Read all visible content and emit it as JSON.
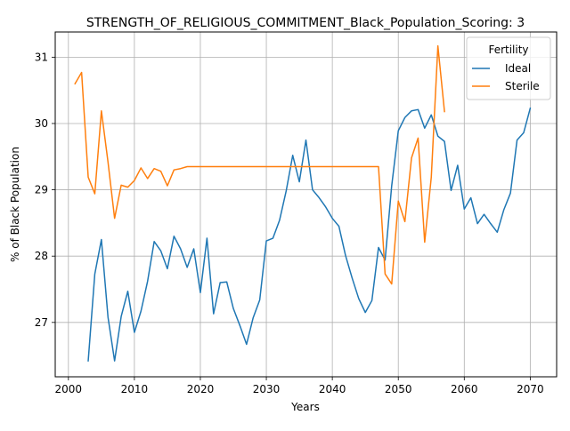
{
  "chart_data": {
    "type": "line",
    "title": "STRENGTH_OF_RELIGIOUS_COMMITMENT_Black_Population_Scoring: 3",
    "xlabel": "Years",
    "ylabel": "% of Black Population",
    "xlim": [
      1998,
      2074
    ],
    "ylim": [
      26.18,
      31.38
    ],
    "xticks": [
      2000,
      2010,
      2020,
      2030,
      2040,
      2050,
      2060,
      2070
    ],
    "yticks": [
      27,
      28,
      29,
      30,
      31
    ],
    "grid": true,
    "legend": {
      "title": "Fertility",
      "placement": "top-right"
    },
    "series": [
      {
        "name": "Ideal",
        "color": "#1f77b4",
        "x": [
          2003,
          2004,
          2005,
          2006,
          2007,
          2008,
          2009,
          2010,
          2011,
          2012,
          2013,
          2014,
          2015,
          2016,
          2017,
          2018,
          2019,
          2020,
          2021,
          2022,
          2023,
          2024,
          2025,
          2026,
          2027,
          2028,
          2029,
          2030,
          2031,
          2032,
          2033,
          2034,
          2035,
          2036,
          2037,
          2038,
          2039,
          2040,
          2041,
          2042,
          2043,
          2044,
          2045,
          2046,
          2047,
          2048,
          2049,
          2050,
          2051,
          2052,
          2053,
          2054,
          2055,
          2056,
          2057,
          2058,
          2059,
          2060,
          2061,
          2062,
          2063,
          2064,
          2065,
          2066,
          2067,
          2068,
          2069,
          2070
        ],
        "y": [
          26.42,
          27.73,
          28.25,
          27.08,
          26.42,
          27.09,
          27.47,
          26.85,
          27.17,
          27.62,
          28.22,
          28.08,
          27.81,
          28.3,
          28.11,
          27.83,
          28.11,
          27.45,
          28.27,
          27.13,
          27.6,
          27.61,
          27.21,
          26.95,
          26.67,
          27.07,
          27.34,
          28.23,
          28.27,
          28.54,
          28.98,
          29.52,
          29.12,
          29.75,
          29.0,
          28.88,
          28.74,
          28.57,
          28.45,
          28.01,
          27.67,
          27.36,
          27.15,
          27.33,
          28.13,
          27.94,
          29.06,
          29.89,
          30.09,
          30.19,
          30.21,
          29.93,
          30.13,
          29.81,
          29.73,
          28.99,
          29.37,
          28.71,
          28.88,
          28.49,
          28.63,
          28.49,
          28.36,
          28.7,
          28.95,
          29.75,
          29.86,
          30.23
        ]
      },
      {
        "name": "Sterile",
        "color": "#ff7f0e",
        "x": [
          2001,
          2002,
          2003,
          2004,
          2005,
          2006,
          2007,
          2008,
          2009,
          2010,
          2011,
          2012,
          2013,
          2014,
          2015,
          2016,
          2017,
          2018,
          2019,
          2020,
          2021,
          2022,
          2023,
          2024,
          2025,
          2026,
          2027,
          2028,
          2029,
          2030,
          2031,
          2032,
          2033,
          2034,
          2035,
          2036,
          2037,
          2038,
          2039,
          2040,
          2041,
          2042,
          2043,
          2044,
          2045,
          2046,
          2047,
          2048,
          2049,
          2050,
          2051,
          2052,
          2053,
          2054,
          2055,
          2056,
          2057
        ],
        "y": [
          30.6,
          30.77,
          29.19,
          28.94,
          30.19,
          29.42,
          28.57,
          29.07,
          29.04,
          29.14,
          29.33,
          29.17,
          29.32,
          29.28,
          29.06,
          29.3,
          29.32,
          29.35,
          29.35,
          29.35,
          29.35,
          29.35,
          29.35,
          29.35,
          29.35,
          29.35,
          29.35,
          29.35,
          29.35,
          29.35,
          29.35,
          29.35,
          29.35,
          29.35,
          29.35,
          29.35,
          29.35,
          29.35,
          29.35,
          29.35,
          29.35,
          29.35,
          29.35,
          29.35,
          29.35,
          29.35,
          29.35,
          27.73,
          27.58,
          28.83,
          28.52,
          29.48,
          29.78,
          28.21,
          29.19,
          31.17,
          30.18
        ]
      }
    ]
  }
}
